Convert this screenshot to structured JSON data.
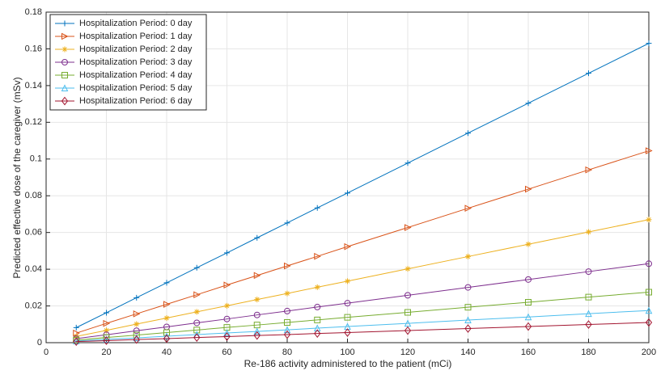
{
  "chart_data": {
    "type": "line",
    "xlabel": "Re-186 activity administered to the patient (mCi)",
    "ylabel": "Predicted effective dose of the caregiver (mSv)",
    "x": [
      10,
      20,
      30,
      40,
      50,
      60,
      70,
      80,
      90,
      100,
      120,
      140,
      160,
      180,
      200
    ],
    "xlim": [
      0,
      200
    ],
    "xticks": [
      0,
      20,
      40,
      60,
      80,
      100,
      120,
      140,
      160,
      180,
      200
    ],
    "ylim": [
      0,
      0.18
    ],
    "yticks": [
      0,
      0.02,
      0.04,
      0.06,
      0.08,
      0.1,
      0.12,
      0.14,
      0.16,
      0.18
    ],
    "grid": true,
    "legend": "upper-left",
    "series": [
      {
        "name": "Hospitalization Period: 0 day",
        "color": "#0072bd",
        "marker": "+",
        "values": [
          0.0082,
          0.0163,
          0.0245,
          0.0326,
          0.0408,
          0.0489,
          0.0571,
          0.0652,
          0.0734,
          0.0815,
          0.0978,
          0.1141,
          0.1304,
          0.1467,
          0.163
        ]
      },
      {
        "name": "Hospitalization Period: 1 day",
        "color": "#d95319",
        "marker": ">",
        "values": [
          0.0052,
          0.0105,
          0.0157,
          0.0209,
          0.0261,
          0.0314,
          0.0366,
          0.0418,
          0.047,
          0.0523,
          0.0627,
          0.0732,
          0.0836,
          0.0941,
          0.1045
        ]
      },
      {
        "name": "Hospitalization Period: 2 day",
        "color": "#edb120",
        "marker": "*",
        "values": [
          0.0034,
          0.0067,
          0.0101,
          0.0134,
          0.0168,
          0.0201,
          0.0235,
          0.0268,
          0.0302,
          0.0335,
          0.0402,
          0.0469,
          0.0536,
          0.0603,
          0.067
        ]
      },
      {
        "name": "Hospitalization Period: 3 day",
        "color": "#7e2f8e",
        "marker": "o",
        "values": [
          0.0022,
          0.0043,
          0.0065,
          0.0086,
          0.0108,
          0.0129,
          0.0151,
          0.0172,
          0.0194,
          0.0215,
          0.0258,
          0.0301,
          0.0344,
          0.0387,
          0.043
        ]
      },
      {
        "name": "Hospitalization Period: 4 day",
        "color": "#77ac30",
        "marker": "s",
        "values": [
          0.0014,
          0.0028,
          0.0041,
          0.0055,
          0.0069,
          0.0083,
          0.0096,
          0.011,
          0.0124,
          0.0138,
          0.0165,
          0.0193,
          0.022,
          0.0248,
          0.0275
        ]
      },
      {
        "name": "Hospitalization Period: 5 day",
        "color": "#4dbeee",
        "marker": "^",
        "values": [
          0.0009,
          0.0018,
          0.0026,
          0.0035,
          0.0044,
          0.0053,
          0.0061,
          0.007,
          0.0079,
          0.0088,
          0.0105,
          0.0123,
          0.014,
          0.0158,
          0.0175
        ]
      },
      {
        "name": "Hospitalization Period: 6 day",
        "color": "#a2142f",
        "marker": "d",
        "values": [
          0.0006,
          0.0011,
          0.0017,
          0.0022,
          0.0028,
          0.0033,
          0.0039,
          0.0044,
          0.005,
          0.0055,
          0.0066,
          0.0077,
          0.0088,
          0.0099,
          0.011
        ]
      }
    ]
  }
}
